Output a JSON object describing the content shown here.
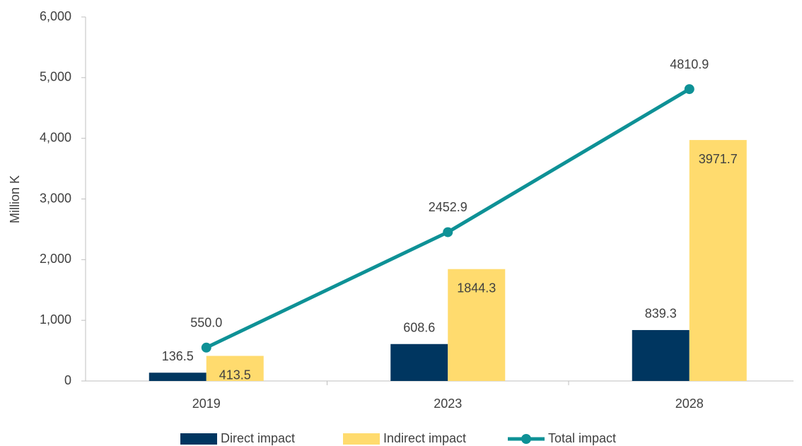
{
  "chart_data": {
    "type": "bar_line",
    "y_axis_label": "Million K",
    "categories": [
      "2019",
      "2023",
      "2028"
    ],
    "series": [
      {
        "name": "Direct impact",
        "type": "bar",
        "color": "#003660",
        "values": [
          136.5,
          608.6,
          839.3
        ],
        "value_labels": [
          "136.5",
          "608.6",
          "839.3"
        ]
      },
      {
        "name": "Indirect impact",
        "type": "bar",
        "color": "#FFDB6E",
        "values": [
          413.5,
          1844.3,
          3971.7
        ],
        "value_labels": [
          "413.5",
          "1844.3",
          "3971.7"
        ]
      },
      {
        "name": "Total impact",
        "type": "line",
        "color": "#0E9196",
        "values": [
          550.0,
          2452.9,
          4810.9
        ],
        "value_labels": [
          "550.0",
          "2452.9",
          "4810.9"
        ]
      }
    ],
    "ylim": [
      0,
      6000
    ],
    "yticks": [
      0,
      {
        "value": 1000,
        "label": "1,000"
      },
      {
        "value": 2000,
        "label": "2,000"
      },
      {
        "value": 3000,
        "label": "3,000"
      },
      {
        "value": 4000,
        "label": "4,000"
      },
      {
        "value": 5000,
        "label": "5,000"
      },
      {
        "value": 6000,
        "label": "6,000"
      }
    ],
    "grid": false,
    "legend": "bottom"
  }
}
